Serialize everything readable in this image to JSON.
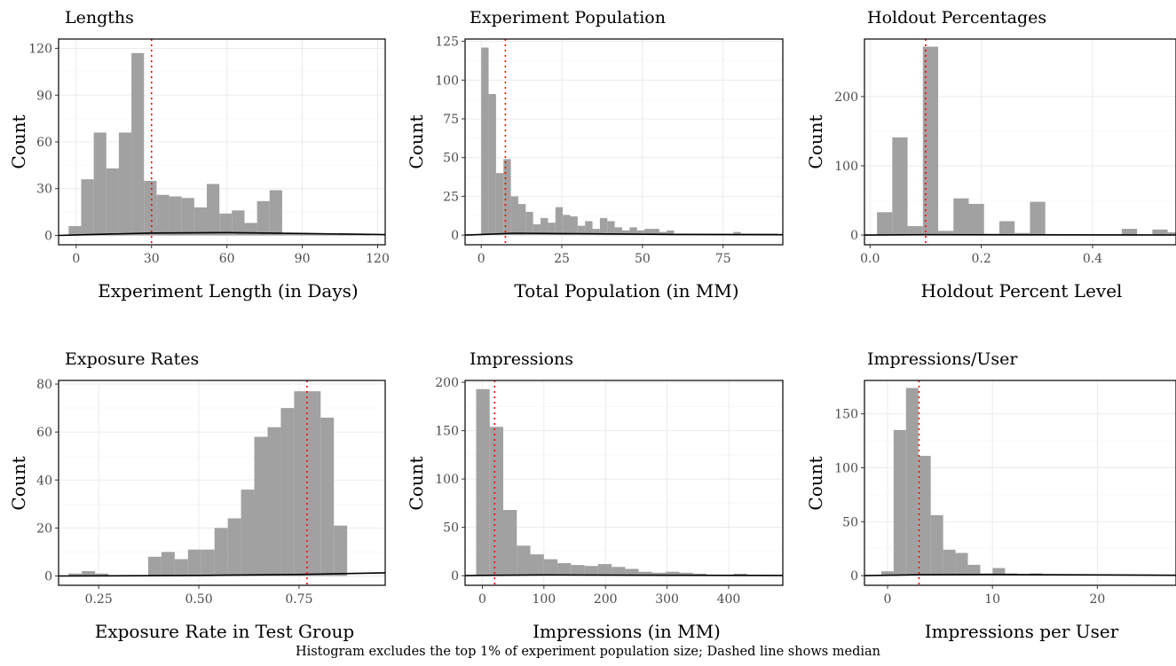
{
  "caption": "Histogram excludes the top 1% of experiment population size; Dashed line shows median",
  "colors": {
    "bar": "#a1a1a1",
    "median": "#ff0000",
    "density": "#000000",
    "grid": "#ebebeb",
    "frame": "#000000"
  },
  "chart_data": [
    {
      "type": "bar",
      "title": "Lengths",
      "xlabel": "Experiment Length (in Days)",
      "ylabel": "Count",
      "xlim": [
        -7,
        123
      ],
      "ylim": [
        -6,
        126
      ],
      "xticks": [
        0,
        30,
        60,
        90,
        120
      ],
      "xtick_labels": [
        "0",
        "30",
        "60",
        "90",
        "120"
      ],
      "yticks": [
        0,
        30,
        60,
        90,
        120
      ],
      "ytick_labels": [
        "0",
        "30",
        "60",
        "90",
        "120"
      ],
      "bin_start": -3,
      "bin_width": 5,
      "values": [
        6,
        36,
        66,
        43,
        66,
        117,
        35,
        26,
        25,
        24,
        18,
        33,
        14,
        16,
        8,
        22,
        29,
        1,
        1,
        1,
        1,
        1,
        1,
        1
      ],
      "median": 30,
      "density": [
        [
          -7,
          0
        ],
        [
          0,
          0.3
        ],
        [
          30,
          1.5
        ],
        [
          60,
          1.8
        ],
        [
          90,
          1.2
        ],
        [
          123,
          0.5
        ]
      ]
    },
    {
      "type": "bar",
      "title": "Experiment Population",
      "xlabel": "Total Population (in MM)",
      "ylabel": "Count",
      "xlim": [
        -5,
        93.5
      ],
      "ylim": [
        -6.25,
        126.5
      ],
      "xticks": [
        0,
        25,
        50,
        75
      ],
      "xtick_labels": [
        "0",
        "25",
        "50",
        "75"
      ],
      "yticks": [
        0,
        25,
        50,
        75,
        100,
        125
      ],
      "ytick_labels": [
        "0",
        "25",
        "50",
        "75",
        "100",
        "125"
      ],
      "bin_start": 0,
      "bin_width": 2.3,
      "values": [
        121,
        91,
        40,
        49,
        25,
        20,
        15,
        7,
        11,
        8,
        18,
        13,
        12,
        6,
        9,
        4,
        11,
        9,
        5,
        3,
        5,
        3,
        4,
        4,
        2,
        3,
        1,
        1,
        1,
        1,
        1,
        1,
        1,
        1,
        2,
        1,
        1,
        1,
        1,
        1
      ],
      "median": 7.5,
      "density": [
        [
          -5,
          0
        ],
        [
          0,
          0.4
        ],
        [
          10,
          1.2
        ],
        [
          30,
          0.9
        ],
        [
          60,
          0.4
        ],
        [
          93.5,
          0.2
        ]
      ]
    },
    {
      "type": "bar",
      "title": "Holdout Percentages",
      "xlabel": "Holdout Percent Level",
      "ylabel": "Count",
      "xlim": [
        -0.01,
        0.55
      ],
      "ylim": [
        -14,
        283
      ],
      "xticks": [
        0,
        0.2,
        0.4
      ],
      "xtick_labels": [
        "0.0",
        "0.2",
        "0.4"
      ],
      "yticks": [
        0,
        100,
        200
      ],
      "ytick_labels": [
        "0",
        "100",
        "200"
      ],
      "bin_start": 0.0125,
      "bin_width": 0.0275,
      "values": [
        33,
        141,
        13,
        272,
        6,
        53,
        45,
        2,
        20,
        3,
        48,
        1,
        1,
        1,
        1,
        1,
        9,
        1,
        8,
        4
      ],
      "median": 0.1,
      "density": [
        [
          -0.01,
          0
        ],
        [
          0.1,
          0.5
        ],
        [
          0.3,
          0.3
        ],
        [
          0.55,
          0.1
        ]
      ]
    },
    {
      "type": "bar",
      "title": "Exposure Rates",
      "xlabel": "Exposure Rate in Test Group",
      "ylabel": "Count",
      "xlim": [
        0.15,
        0.965
      ],
      "ylim": [
        -3.9,
        81.5
      ],
      "xticks": [
        0.25,
        0.5,
        0.75
      ],
      "xtick_labels": [
        "0.25",
        "0.50",
        "0.75"
      ],
      "yticks": [
        0,
        20,
        40,
        60,
        80
      ],
      "ytick_labels": [
        "0",
        "20",
        "40",
        "60",
        "80"
      ],
      "bin_start": 0.175,
      "bin_width": 0.0331,
      "values": [
        1,
        2,
        1,
        0,
        0,
        0,
        8,
        10,
        7,
        11,
        11,
        20,
        24,
        36,
        58,
        62,
        70,
        77,
        77,
        66,
        21
      ],
      "median": 0.77,
      "density": [
        [
          0.15,
          0
        ],
        [
          0.5,
          0.2
        ],
        [
          0.75,
          0.6
        ],
        [
          0.965,
          1.3
        ]
      ]
    },
    {
      "type": "bar",
      "title": "Impressions",
      "xlabel": "Impressions (in MM)",
      "ylabel": "Count",
      "xlim": [
        -28,
        488
      ],
      "ylim": [
        -10,
        202
      ],
      "xticks": [
        0,
        100,
        200,
        300,
        400
      ],
      "xtick_labels": [
        "0",
        "100",
        "200",
        "300",
        "400"
      ],
      "yticks": [
        0,
        50,
        100,
        150,
        200
      ],
      "ytick_labels": [
        "0",
        "50",
        "100",
        "150",
        "200"
      ],
      "bin_start": -10,
      "bin_width": 22,
      "values": [
        193,
        154,
        68,
        31,
        22,
        17,
        13,
        11,
        10,
        12,
        9,
        7,
        4,
        3,
        4,
        3,
        2,
        1,
        1,
        2,
        1,
        1
      ],
      "median": 20,
      "density": [
        [
          -28,
          0
        ],
        [
          0,
          0.3
        ],
        [
          100,
          0.7
        ],
        [
          300,
          0.4
        ],
        [
          488,
          0.2
        ]
      ]
    },
    {
      "type": "bar",
      "title": "Impressions/User",
      "xlabel": "Impressions per User",
      "ylabel": "Count",
      "xlim": [
        -2.2,
        27.5
      ],
      "ylim": [
        -9,
        181
      ],
      "xticks": [
        0,
        10,
        20
      ],
      "xtick_labels": [
        "0",
        "10",
        "20"
      ],
      "yticks": [
        0,
        50,
        100,
        150
      ],
      "ytick_labels": [
        "0",
        "50",
        "100",
        "150"
      ],
      "bin_start": -0.6,
      "bin_width": 1.18,
      "values": [
        4,
        135,
        174,
        111,
        56,
        24,
        21,
        10,
        2,
        7,
        2,
        1,
        2,
        1,
        1,
        1,
        1,
        1,
        1,
        1,
        1,
        1
      ],
      "median": 3,
      "density": [
        [
          -2.2,
          0
        ],
        [
          3,
          0.8
        ],
        [
          10,
          1.0
        ],
        [
          27.5,
          0.3
        ]
      ]
    }
  ]
}
